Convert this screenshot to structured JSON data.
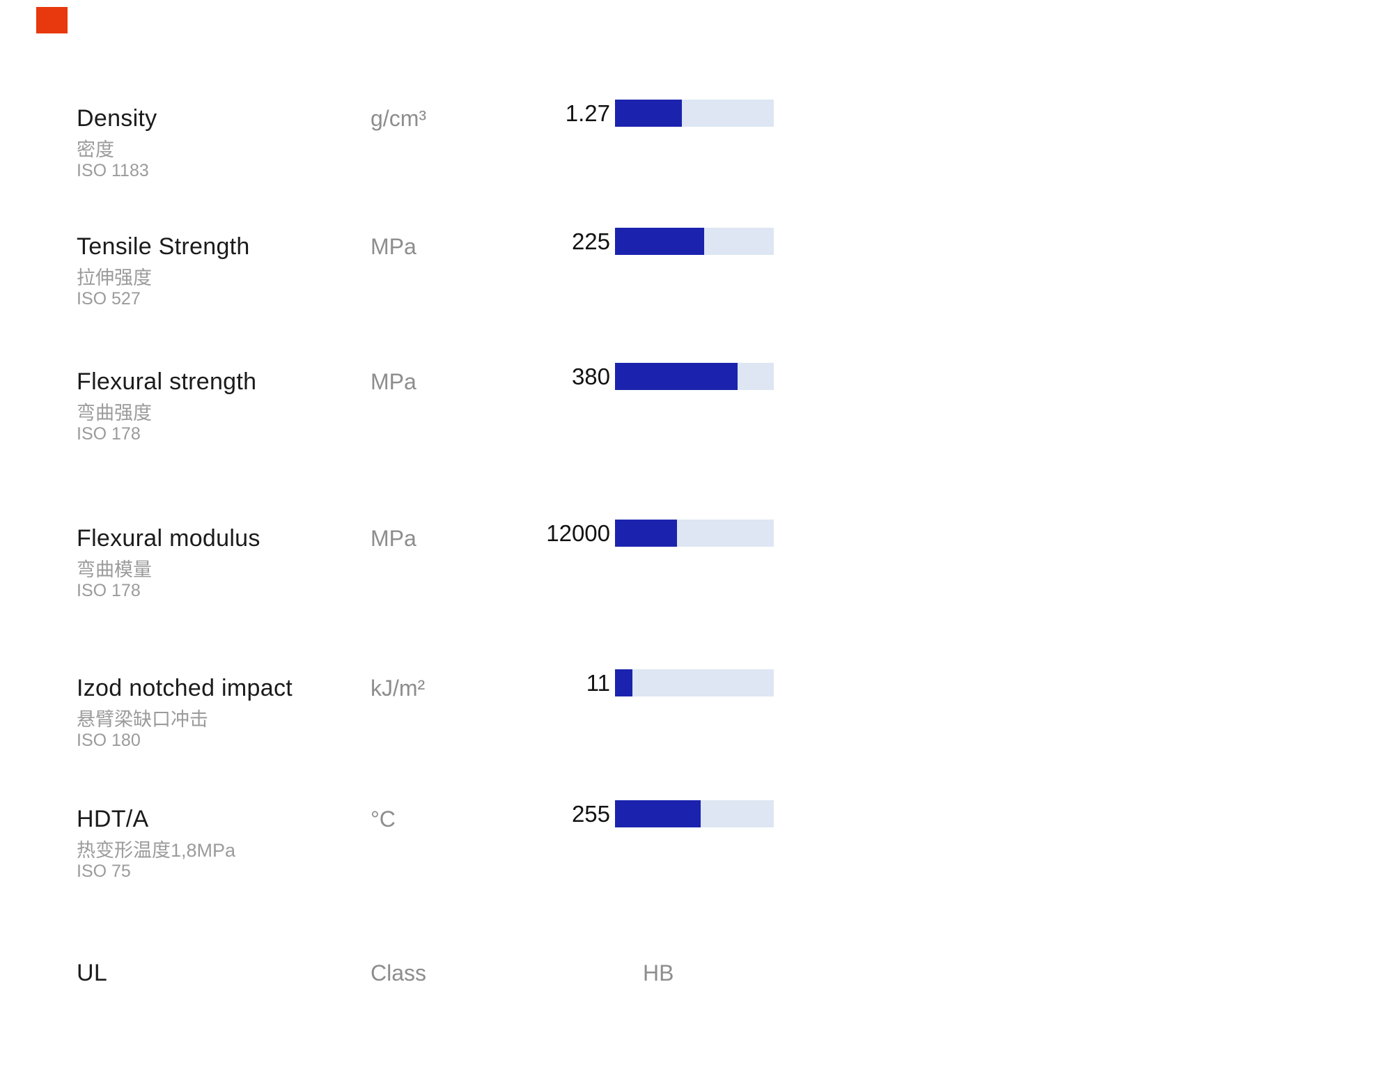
{
  "brand_mark": {
    "color": "#e8380d"
  },
  "chart_data": {
    "type": "bar",
    "orientation": "horizontal",
    "grid": false,
    "legend": false,
    "bar_colors": {
      "fill": "#1b23ae",
      "track": "#dde6f2"
    },
    "rows": [
      {
        "name": "Density",
        "name_zh": "密度",
        "standard": "ISO 1183",
        "unit": "g/cm³",
        "value": "1.27",
        "fill_pct": 42
      },
      {
        "name": "Tensile Strength",
        "name_zh": "拉伸强度",
        "standard": "ISO 527",
        "unit": "MPa",
        "value": "225",
        "fill_pct": 56
      },
      {
        "name": "Flexural strength",
        "name_zh": "弯曲强度",
        "standard": "ISO 178",
        "unit": "MPa",
        "value": "380",
        "fill_pct": 77
      },
      {
        "name": "Flexural modulus",
        "name_zh": "弯曲模量",
        "standard": "ISO 178",
        "unit": "MPa",
        "value": "12000",
        "fill_pct": 39
      },
      {
        "name": "Izod notched impact",
        "name_zh": "悬臂梁缺口冲击",
        "standard": "ISO 180",
        "unit": "kJ/m²",
        "value": "11",
        "fill_pct": 11
      },
      {
        "name": "HDT/A",
        "name_zh": "热变形温度1,8MPa",
        "standard": "ISO 75",
        "unit": "°C",
        "value": "255",
        "fill_pct": 54
      }
    ],
    "footer": {
      "name": "UL",
      "unit": "Class",
      "value": "HB"
    }
  }
}
